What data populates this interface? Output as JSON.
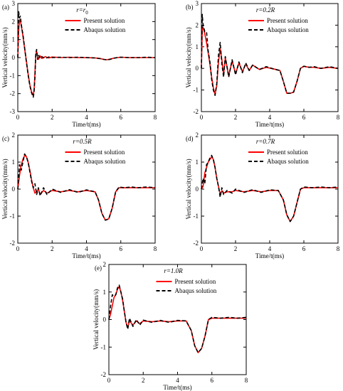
{
  "figure": {
    "present_color": "#ff0000",
    "abaqus_color": "#000000"
  },
  "chart_data": [
    {
      "type": "line",
      "panel_label": "(a)",
      "r_prefix": "r=",
      "r_value": "r",
      "r_sub": "0",
      "legend": [
        "Present solution",
        "Abaqus solution"
      ],
      "legend_placement": "top-center",
      "xlabel": "Time/t(ms)",
      "ylabel": "Vertical velocity(mm/s)",
      "xlim": [
        0,
        8
      ],
      "ylim": [
        -3,
        3
      ],
      "xticks": [
        0,
        2,
        4,
        6,
        8
      ],
      "yticks": [
        -3,
        -2,
        -1,
        0,
        1,
        2,
        3
      ],
      "grid": false,
      "series": [
        {
          "name": "Present solution",
          "style": "solid",
          "x": [
            0,
            0.05,
            0.1,
            0.15,
            0.2,
            0.3,
            0.4,
            0.5,
            0.6,
            0.7,
            0.8,
            0.9,
            0.95,
            1.0,
            1.05,
            1.1,
            1.15,
            1.2,
            1.3,
            1.4,
            1.6,
            1.8,
            2.0,
            2.5,
            3.0,
            3.5,
            4.0,
            4.5,
            4.8,
            5.0,
            5.2,
            5.4,
            5.6,
            5.8,
            6.0,
            6.5,
            7.0,
            7.5,
            8.0
          ],
          "y": [
            0,
            1.5,
            2.1,
            2.05,
            1.8,
            1.2,
            0.5,
            -0.2,
            -0.9,
            -1.5,
            -1.9,
            -2.1,
            -1.8,
            -0.9,
            0.2,
            0.35,
            0.05,
            -0.1,
            0.1,
            -0.05,
            0.05,
            -0.02,
            0.03,
            0.0,
            0.02,
            0.0,
            0.0,
            -0.02,
            -0.05,
            -0.1,
            -0.12,
            -0.08,
            -0.03,
            0.0,
            0.02,
            0.0,
            0.0,
            0.0,
            0.0
          ]
        },
        {
          "name": "Abaqus solution",
          "style": "dashed",
          "x": [
            0,
            0.05,
            0.1,
            0.15,
            0.2,
            0.3,
            0.4,
            0.5,
            0.6,
            0.7,
            0.8,
            0.9,
            0.95,
            1.0,
            1.05,
            1.1,
            1.15,
            1.2,
            1.3,
            1.4,
            1.6,
            1.8,
            2.0,
            2.5,
            3.0,
            3.5,
            4.0,
            4.5,
            4.8,
            5.0,
            5.2,
            5.4,
            5.6,
            5.8,
            6.0,
            6.5,
            7.0,
            7.5,
            8.0
          ],
          "y": [
            0,
            2.55,
            2.2,
            2.3,
            1.85,
            1.3,
            0.55,
            -0.25,
            -0.95,
            -1.55,
            -1.95,
            -2.2,
            -1.9,
            -1.1,
            0.25,
            0.45,
            -0.1,
            0.15,
            -0.05,
            0.05,
            -0.05,
            0.03,
            0.0,
            0.02,
            0.0,
            0.02,
            0.0,
            -0.02,
            -0.06,
            -0.1,
            -0.13,
            -0.09,
            -0.03,
            0.0,
            0.02,
            0.0,
            0.0,
            0.02,
            0.0
          ]
        }
      ]
    },
    {
      "type": "line",
      "panel_label": "(b)",
      "r_prefix": "r=",
      "r_value": "0.2R",
      "r_sub": "",
      "legend": [
        "Present solution",
        "Abaqus solution"
      ],
      "legend_placement": "top-center",
      "xlabel": "Time/t(ms)",
      "ylabel": "Vertical velocity(mm/s)",
      "xlim": [
        0,
        8
      ],
      "ylim": [
        -2,
        3
      ],
      "xticks": [
        0,
        2,
        4,
        6,
        8
      ],
      "yticks": [
        -2,
        -1,
        0,
        1,
        2,
        3
      ],
      "grid": false,
      "series": [
        {
          "name": "Present solution",
          "style": "solid",
          "x": [
            0,
            0.05,
            0.1,
            0.2,
            0.3,
            0.4,
            0.5,
            0.6,
            0.7,
            0.8,
            0.9,
            1.0,
            1.1,
            1.2,
            1.3,
            1.4,
            1.6,
            1.8,
            2.0,
            2.2,
            2.4,
            2.6,
            2.8,
            3.0,
            3.4,
            3.8,
            4.2,
            4.6,
            4.8,
            5.0,
            5.2,
            5.4,
            5.6,
            5.8,
            6.0,
            6.3,
            6.6,
            7.0,
            7.5,
            8.0
          ],
          "y": [
            0,
            1.8,
            1.9,
            1.6,
            1.2,
            0.7,
            0.2,
            -0.4,
            -0.9,
            -1.2,
            -0.8,
            0.3,
            0.9,
            0.4,
            -0.3,
            0.5,
            -0.35,
            0.35,
            -0.25,
            0.25,
            -0.15,
            0.2,
            -0.1,
            0.15,
            -0.05,
            0.05,
            -0.02,
            -0.1,
            -0.6,
            -1.15,
            -1.15,
            -1.1,
            -0.6,
            0.0,
            0.1,
            0.05,
            0.05,
            0.0,
            0.05,
            0.0
          ]
        },
        {
          "name": "Abaqus solution",
          "style": "dashed",
          "x": [
            0,
            0.05,
            0.1,
            0.2,
            0.3,
            0.4,
            0.5,
            0.6,
            0.7,
            0.8,
            0.9,
            1.0,
            1.1,
            1.2,
            1.3,
            1.4,
            1.6,
            1.8,
            2.0,
            2.2,
            2.4,
            2.6,
            2.8,
            3.0,
            3.4,
            3.8,
            4.2,
            4.6,
            4.8,
            5.0,
            5.2,
            5.4,
            5.6,
            5.8,
            6.0,
            6.3,
            6.6,
            7.0,
            7.5,
            8.0
          ],
          "y": [
            0,
            2.5,
            2.0,
            1.7,
            1.7,
            0.8,
            0.3,
            -0.5,
            -1.0,
            -1.25,
            -0.7,
            0.6,
            1.2,
            0.2,
            -0.4,
            0.55,
            -0.4,
            0.4,
            -0.3,
            0.3,
            -0.2,
            0.25,
            -0.1,
            0.15,
            -0.05,
            0.08,
            -0.02,
            -0.1,
            -0.6,
            -1.15,
            -1.15,
            -1.1,
            -0.6,
            0.0,
            0.1,
            0.05,
            0.08,
            0.0,
            0.08,
            0.0
          ]
        }
      ]
    },
    {
      "type": "line",
      "panel_label": "(c)",
      "r_prefix": "r=",
      "r_value": "0.5R",
      "r_sub": "",
      "legend": [
        "Present solution",
        "Abaqus solution"
      ],
      "legend_placement": "top-center",
      "xlabel": "Time/t(ms)",
      "ylabel": "Vertical velocity(mm/s)",
      "xlim": [
        0,
        8
      ],
      "ylim": [
        -2,
        2
      ],
      "xticks": [
        0,
        2,
        4,
        6,
        8
      ],
      "yticks": [
        -2,
        -1,
        0,
        1,
        2
      ],
      "grid": false,
      "series": [
        {
          "name": "Present solution",
          "style": "solid",
          "x": [
            0,
            0.1,
            0.2,
            0.3,
            0.4,
            0.5,
            0.6,
            0.7,
            0.8,
            0.9,
            1.0,
            1.1,
            1.2,
            1.3,
            1.5,
            1.7,
            2.0,
            2.5,
            3.0,
            3.5,
            4.0,
            4.5,
            4.7,
            4.9,
            5.1,
            5.3,
            5.5,
            5.7,
            5.9,
            6.2,
            6.6,
            7.0,
            7.5,
            8.0
          ],
          "y": [
            0,
            0.5,
            0.9,
            1.1,
            1.25,
            1.2,
            1.0,
            0.7,
            0.35,
            0.05,
            -0.15,
            -0.1,
            0.0,
            -0.2,
            -0.05,
            -0.15,
            -0.05,
            -0.1,
            -0.05,
            -0.1,
            -0.05,
            -0.1,
            -0.4,
            -0.9,
            -1.15,
            -1.1,
            -0.7,
            -0.1,
            0.05,
            0.05,
            0.05,
            0.05,
            0.05,
            0.05
          ]
        },
        {
          "name": "Abaqus solution",
          "style": "dashed",
          "x": [
            0,
            0.1,
            0.2,
            0.3,
            0.4,
            0.5,
            0.6,
            0.7,
            0.8,
            0.9,
            1.0,
            1.1,
            1.2,
            1.3,
            1.5,
            1.7,
            2.0,
            2.5,
            3.0,
            3.5,
            4.0,
            4.5,
            4.7,
            4.9,
            5.1,
            5.3,
            5.5,
            5.7,
            5.9,
            6.2,
            6.6,
            7.0,
            7.5,
            8.0
          ],
          "y": [
            0,
            0.9,
            0.7,
            1.0,
            1.3,
            1.2,
            1.0,
            0.65,
            0.3,
            0.05,
            0.2,
            -0.2,
            0.05,
            -0.25,
            0.05,
            -0.2,
            0.0,
            -0.12,
            -0.02,
            -0.12,
            -0.03,
            -0.1,
            -0.4,
            -0.9,
            -1.15,
            -1.1,
            -0.7,
            -0.1,
            0.08,
            0.05,
            0.08,
            0.05,
            0.08,
            0.05
          ]
        }
      ]
    },
    {
      "type": "line",
      "panel_label": "(d)",
      "r_prefix": "r=",
      "r_value": "0.7R",
      "r_sub": "",
      "legend": [
        "Present solution",
        "Abaqus solution"
      ],
      "legend_placement": "top-center",
      "xlabel": "Time/t(ms)",
      "ylabel": "Vertical velocity(mm/s)",
      "xlim": [
        0,
        8
      ],
      "ylim": [
        -2,
        2
      ],
      "xticks": [
        0,
        2,
        4,
        6,
        8
      ],
      "yticks": [
        -2,
        -1,
        0,
        1,
        2
      ],
      "grid": false,
      "series": [
        {
          "name": "Present solution",
          "style": "solid",
          "x": [
            0,
            0.1,
            0.2,
            0.3,
            0.4,
            0.5,
            0.6,
            0.7,
            0.8,
            0.9,
            1.0,
            1.1,
            1.2,
            1.3,
            1.5,
            1.8,
            2.0,
            2.5,
            3.0,
            3.5,
            4.0,
            4.5,
            4.8,
            5.0,
            5.2,
            5.4,
            5.6,
            5.8,
            6.0,
            6.5,
            7.0,
            7.5,
            8.0
          ],
          "y": [
            0,
            0.1,
            0.6,
            0.8,
            1.0,
            1.1,
            1.2,
            1.1,
            0.8,
            0.4,
            0.1,
            -0.2,
            -0.05,
            -0.15,
            -0.1,
            -0.1,
            -0.05,
            -0.1,
            -0.05,
            -0.1,
            -0.05,
            -0.05,
            -0.4,
            -0.95,
            -1.2,
            -1.0,
            -0.5,
            0.0,
            0.05,
            0.05,
            0.05,
            0.05,
            0.05
          ]
        },
        {
          "name": "Abaqus solution",
          "style": "dashed",
          "x": [
            0,
            0.1,
            0.2,
            0.3,
            0.4,
            0.5,
            0.6,
            0.7,
            0.8,
            0.9,
            1.0,
            1.1,
            1.2,
            1.3,
            1.5,
            1.8,
            2.0,
            2.5,
            3.0,
            3.5,
            4.0,
            4.5,
            4.8,
            5.0,
            5.2,
            5.4,
            5.6,
            5.8,
            6.0,
            6.5,
            7.0,
            7.5,
            8.0
          ],
          "y": [
            0,
            0.4,
            0.2,
            0.9,
            1.0,
            1.15,
            1.25,
            1.1,
            0.8,
            0.4,
            0.1,
            -0.3,
            0.05,
            -0.2,
            -0.05,
            -0.15,
            0.0,
            -0.12,
            -0.02,
            -0.12,
            -0.03,
            -0.05,
            -0.4,
            -0.95,
            -1.2,
            -1.0,
            -0.5,
            0.0,
            0.08,
            0.05,
            0.08,
            0.05,
            0.08
          ]
        }
      ]
    },
    {
      "type": "line",
      "panel_label": "(e)",
      "r_prefix": "r=",
      "r_value": "1.0R",
      "r_sub": "",
      "legend": [
        "Present solution",
        "Abaqus solution"
      ],
      "legend_placement": "top-center",
      "xlabel": "Time/t(ms)",
      "ylabel": "Vertical velocity(mm/s)",
      "xlim": [
        0,
        8
      ],
      "ylim": [
        -2,
        2
      ],
      "xticks": [
        0,
        2,
        4,
        6,
        8
      ],
      "yticks": [
        -2,
        -1,
        0,
        1,
        2
      ],
      "grid": false,
      "series": [
        {
          "name": "Present solution",
          "style": "solid",
          "x": [
            0,
            0.1,
            0.2,
            0.3,
            0.4,
            0.5,
            0.6,
            0.7,
            0.8,
            0.9,
            1.0,
            1.1,
            1.2,
            1.4,
            1.6,
            1.8,
            2.0,
            2.5,
            3.0,
            3.5,
            4.0,
            4.5,
            4.8,
            5.0,
            5.2,
            5.4,
            5.6,
            5.8,
            6.0,
            6.5,
            7.0,
            7.5,
            8.0
          ],
          "y": [
            0,
            0.2,
            0.5,
            0.8,
            0.9,
            1.1,
            1.2,
            1.0,
            0.7,
            0.3,
            -0.1,
            -0.3,
            -0.05,
            -0.2,
            -0.05,
            -0.15,
            -0.05,
            -0.08,
            -0.05,
            -0.08,
            -0.05,
            -0.05,
            -0.4,
            -0.95,
            -1.2,
            -1.05,
            -0.6,
            0.0,
            0.05,
            0.05,
            0.05,
            0.05,
            0.05
          ]
        },
        {
          "name": "Abaqus solution",
          "style": "dashed",
          "x": [
            0,
            0.1,
            0.2,
            0.3,
            0.4,
            0.5,
            0.6,
            0.7,
            0.8,
            0.9,
            1.0,
            1.1,
            1.2,
            1.4,
            1.6,
            1.8,
            2.0,
            2.5,
            3.0,
            3.5,
            4.0,
            4.5,
            4.8,
            5.0,
            5.2,
            5.4,
            5.6,
            5.8,
            6.0,
            6.5,
            7.0,
            7.5,
            8.0
          ],
          "y": [
            0,
            0.5,
            0.9,
            0.85,
            0.9,
            1.15,
            1.25,
            1.0,
            0.75,
            0.3,
            -0.1,
            -0.35,
            0.05,
            -0.25,
            0.0,
            -0.2,
            -0.02,
            -0.1,
            -0.03,
            -0.1,
            -0.03,
            -0.05,
            -0.4,
            -0.95,
            -1.2,
            -1.05,
            -0.6,
            0.0,
            0.08,
            0.05,
            0.08,
            0.05,
            0.08
          ]
        }
      ]
    }
  ]
}
